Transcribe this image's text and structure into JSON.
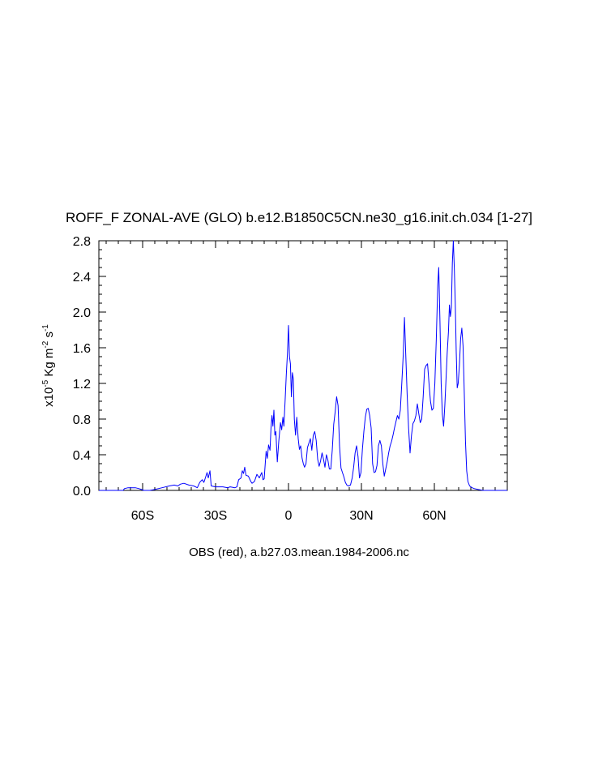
{
  "chart_data": {
    "type": "line",
    "title": "ROFF_F ZONAL-AVE (GLO) b.e12.B1850C5CN.ne30_g16.init.ch.034 [1-27]",
    "caption": "OBS (red), a.b27.03.mean.1984-2006.nc",
    "ylabel": {
      "prefix": "x10",
      "exp1": "-5",
      "unit1": " Kg m",
      "exp2": "-2",
      "unit2": " s",
      "exp3": "-1"
    },
    "xlim": [
      -78,
      90
    ],
    "ylim": [
      0,
      2.8
    ],
    "x_ticks": [
      {
        "value": -60,
        "label": "60S"
      },
      {
        "value": -30,
        "label": "30S"
      },
      {
        "value": 0,
        "label": "0"
      },
      {
        "value": 30,
        "label": "30N"
      },
      {
        "value": 60,
        "label": "60N"
      }
    ],
    "y_ticks": [
      {
        "value": 0.0,
        "label": "0.0"
      },
      {
        "value": 0.4,
        "label": "0.4"
      },
      {
        "value": 0.8,
        "label": "0.8"
      },
      {
        "value": 1.2,
        "label": "1.2"
      },
      {
        "value": 1.6,
        "label": "1.6"
      },
      {
        "value": 2.0,
        "label": "2.0"
      },
      {
        "value": 2.4,
        "label": "2.4"
      },
      {
        "value": 2.8,
        "label": "2.8"
      }
    ],
    "grid": false,
    "series_color": "#0000ff",
    "series": [
      {
        "color": "#0000ff",
        "points": [
          [
            -78,
            0.0
          ],
          [
            -68,
            0.0
          ],
          [
            -67.5,
            0.02
          ],
          [
            -66,
            0.03
          ],
          [
            -63,
            0.03
          ],
          [
            -61.5,
            0.02
          ],
          [
            -60.5,
            0.01
          ],
          [
            -59.5,
            0.0
          ],
          [
            -57,
            0.0
          ],
          [
            -55,
            0.01
          ],
          [
            -52,
            0.03
          ],
          [
            -49,
            0.05
          ],
          [
            -47,
            0.06
          ],
          [
            -45.5,
            0.05
          ],
          [
            -44.5,
            0.07
          ],
          [
            -43,
            0.08
          ],
          [
            -41,
            0.06
          ],
          [
            -39,
            0.05
          ],
          [
            -37.5,
            0.03
          ],
          [
            -36.5,
            0.09
          ],
          [
            -35.5,
            0.12
          ],
          [
            -34.8,
            0.09
          ],
          [
            -34.2,
            0.14
          ],
          [
            -33.5,
            0.2
          ],
          [
            -33,
            0.14
          ],
          [
            -32.3,
            0.22
          ],
          [
            -31.8,
            0.05
          ],
          [
            -30,
            0.04
          ],
          [
            -27,
            0.04
          ],
          [
            -25,
            0.03
          ],
          [
            -24,
            0.04
          ],
          [
            -22,
            0.03
          ],
          [
            -21.2,
            0.04
          ],
          [
            -20.5,
            0.12
          ],
          [
            -19.5,
            0.14
          ],
          [
            -19,
            0.22
          ],
          [
            -18.5,
            0.19
          ],
          [
            -18,
            0.26
          ],
          [
            -17.5,
            0.17
          ],
          [
            -16.5,
            0.16
          ],
          [
            -15.5,
            0.1
          ],
          [
            -15,
            0.08
          ],
          [
            -14,
            0.1
          ],
          [
            -13,
            0.18
          ],
          [
            -12,
            0.14
          ],
          [
            -11,
            0.2
          ],
          [
            -10.5,
            0.12
          ],
          [
            -10,
            0.13
          ],
          [
            -9.2,
            0.44
          ],
          [
            -8.7,
            0.36
          ],
          [
            -8.2,
            0.51
          ],
          [
            -7.6,
            0.45
          ],
          [
            -7.2,
            0.7
          ],
          [
            -6.8,
            0.84
          ],
          [
            -6.4,
            0.72
          ],
          [
            -6.0,
            0.9
          ],
          [
            -5.6,
            0.62
          ],
          [
            -5.2,
            0.66
          ],
          [
            -4.6,
            0.32
          ],
          [
            -4.0,
            0.55
          ],
          [
            -3.3,
            0.76
          ],
          [
            -2.8,
            0.68
          ],
          [
            -2.3,
            0.82
          ],
          [
            -1.9,
            0.72
          ],
          [
            -1.4,
            1.0
          ],
          [
            -0.9,
            1.3
          ],
          [
            -0.4,
            1.55
          ],
          [
            0.0,
            1.85
          ],
          [
            0.4,
            1.5
          ],
          [
            0.8,
            1.42
          ],
          [
            1.2,
            1.05
          ],
          [
            1.6,
            1.32
          ],
          [
            2.0,
            1.25
          ],
          [
            2.4,
            0.8
          ],
          [
            2.9,
            0.62
          ],
          [
            3.4,
            0.82
          ],
          [
            4.0,
            0.58
          ],
          [
            4.5,
            0.46
          ],
          [
            5.0,
            0.5
          ],
          [
            5.6,
            0.36
          ],
          [
            6.1,
            0.3
          ],
          [
            6.6,
            0.26
          ],
          [
            7.2,
            0.3
          ],
          [
            7.8,
            0.48
          ],
          [
            8.4,
            0.53
          ],
          [
            9.0,
            0.58
          ],
          [
            9.6,
            0.45
          ],
          [
            10.2,
            0.62
          ],
          [
            10.8,
            0.66
          ],
          [
            11.4,
            0.56
          ],
          [
            12.0,
            0.35
          ],
          [
            12.6,
            0.27
          ],
          [
            13.2,
            0.33
          ],
          [
            13.8,
            0.42
          ],
          [
            14.4,
            0.35
          ],
          [
            15.0,
            0.26
          ],
          [
            15.6,
            0.4
          ],
          [
            16.2,
            0.34
          ],
          [
            16.8,
            0.24
          ],
          [
            17.4,
            0.24
          ],
          [
            18.0,
            0.45
          ],
          [
            18.6,
            0.74
          ],
          [
            19.2,
            0.88
          ],
          [
            19.8,
            1.05
          ],
          [
            20.4,
            0.95
          ],
          [
            21.0,
            0.5
          ],
          [
            21.6,
            0.25
          ],
          [
            22.2,
            0.2
          ],
          [
            22.8,
            0.15
          ],
          [
            23.4,
            0.09
          ],
          [
            24.0,
            0.06
          ],
          [
            24.6,
            0.05
          ],
          [
            25.5,
            0.06
          ],
          [
            26.2,
            0.14
          ],
          [
            26.8,
            0.26
          ],
          [
            27.4,
            0.42
          ],
          [
            28.0,
            0.5
          ],
          [
            28.6,
            0.38
          ],
          [
            29.2,
            0.14
          ],
          [
            29.8,
            0.2
          ],
          [
            30.4,
            0.46
          ],
          [
            31.0,
            0.66
          ],
          [
            31.6,
            0.82
          ],
          [
            32.2,
            0.91
          ],
          [
            32.8,
            0.92
          ],
          [
            33.4,
            0.84
          ],
          [
            34.0,
            0.7
          ],
          [
            34.6,
            0.3
          ],
          [
            35.2,
            0.2
          ],
          [
            35.8,
            0.21
          ],
          [
            36.4,
            0.28
          ],
          [
            37.0,
            0.5
          ],
          [
            37.6,
            0.56
          ],
          [
            38.2,
            0.5
          ],
          [
            38.8,
            0.3
          ],
          [
            39.4,
            0.16
          ],
          [
            40.0,
            0.24
          ],
          [
            40.6,
            0.32
          ],
          [
            41.2,
            0.42
          ],
          [
            41.8,
            0.5
          ],
          [
            42.4,
            0.55
          ],
          [
            43.0,
            0.62
          ],
          [
            43.6,
            0.7
          ],
          [
            44.2,
            0.77
          ],
          [
            44.8,
            0.84
          ],
          [
            45.4,
            0.8
          ],
          [
            46.0,
            0.9
          ],
          [
            46.6,
            1.2
          ],
          [
            47.2,
            1.52
          ],
          [
            47.7,
            1.94
          ],
          [
            48.2,
            1.55
          ],
          [
            48.8,
            1.08
          ],
          [
            49.4,
            0.7
          ],
          [
            50.0,
            0.42
          ],
          [
            50.6,
            0.62
          ],
          [
            51.2,
            0.75
          ],
          [
            51.8,
            0.78
          ],
          [
            52.4,
            0.84
          ],
          [
            53.0,
            0.97
          ],
          [
            53.6,
            0.86
          ],
          [
            54.2,
            0.76
          ],
          [
            54.8,
            0.8
          ],
          [
            55.4,
            1.05
          ],
          [
            56.0,
            1.36
          ],
          [
            56.6,
            1.4
          ],
          [
            57.2,
            1.42
          ],
          [
            57.8,
            1.2
          ],
          [
            58.4,
            1.0
          ],
          [
            59.0,
            0.9
          ],
          [
            59.6,
            0.92
          ],
          [
            60.2,
            1.2
          ],
          [
            60.8,
            1.7
          ],
          [
            61.4,
            2.3
          ],
          [
            61.8,
            2.5
          ],
          [
            62.3,
            1.9
          ],
          [
            62.8,
            1.2
          ],
          [
            63.3,
            0.85
          ],
          [
            63.8,
            0.72
          ],
          [
            64.3,
            0.95
          ],
          [
            64.8,
            1.25
          ],
          [
            65.3,
            1.55
          ],
          [
            65.8,
            1.78
          ],
          [
            66.2,
            2.08
          ],
          [
            66.6,
            1.95
          ],
          [
            67.0,
            2.05
          ],
          [
            67.4,
            2.55
          ],
          [
            67.8,
            2.8
          ],
          [
            68.2,
            2.5
          ],
          [
            68.6,
            2.1
          ],
          [
            69.0,
            1.55
          ],
          [
            69.4,
            1.15
          ],
          [
            69.8,
            1.2
          ],
          [
            70.3,
            1.4
          ],
          [
            70.8,
            1.7
          ],
          [
            71.3,
            1.82
          ],
          [
            71.8,
            1.62
          ],
          [
            72.3,
            1.1
          ],
          [
            72.8,
            0.55
          ],
          [
            73.3,
            0.22
          ],
          [
            73.8,
            0.1
          ],
          [
            74.5,
            0.05
          ],
          [
            75.5,
            0.03
          ],
          [
            76.5,
            0.02
          ],
          [
            78.0,
            0.01
          ],
          [
            80.0,
            0.0
          ],
          [
            90.0,
            0.0
          ]
        ]
      }
    ]
  }
}
